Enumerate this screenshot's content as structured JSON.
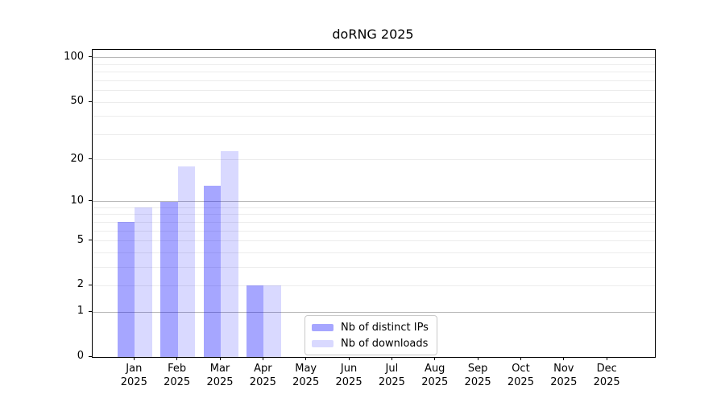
{
  "title": "doRNG 2025",
  "chart_data": {
    "type": "bar",
    "title": "doRNG 2025",
    "yscale": "log1p",
    "ylim": [
      0,
      113
    ],
    "grid": "horizontal",
    "legend_position": "lower center",
    "categories": [
      "Jan",
      "Feb",
      "Mar",
      "Apr",
      "May",
      "Jun",
      "Jul",
      "Aug",
      "Sep",
      "Oct",
      "Nov",
      "Dec"
    ],
    "category_sublabel": "2025",
    "yticks": [
      100,
      50,
      20,
      10,
      5,
      2,
      1,
      0
    ],
    "major_gridlines": [
      1,
      10,
      100
    ],
    "minor_gridlines": [
      2,
      3,
      4,
      5,
      6,
      7,
      8,
      9,
      20,
      30,
      40,
      50,
      60,
      70,
      80,
      90
    ],
    "series": [
      {
        "name": "Nb of distinct IPs",
        "color": "#a6a6ff",
        "rgba": "rgba(0,0,255,0.35)",
        "values": [
          7,
          10,
          13,
          2,
          0,
          0,
          0,
          0,
          0,
          0,
          0,
          0
        ]
      },
      {
        "name": "Nb of downloads",
        "color": "#d9d9ff",
        "rgba": "rgba(0,0,255,0.15)",
        "values": [
          9,
          18,
          23,
          2,
          0,
          0,
          0,
          0,
          0,
          0,
          0,
          0
        ]
      }
    ]
  },
  "colors": {
    "frame": "#000000",
    "text": "#000000",
    "grid_major": "#b8b8b8",
    "grid_minor": "#ececec",
    "legend_border": "#c9c9c9",
    "background": "#ffffff"
  }
}
